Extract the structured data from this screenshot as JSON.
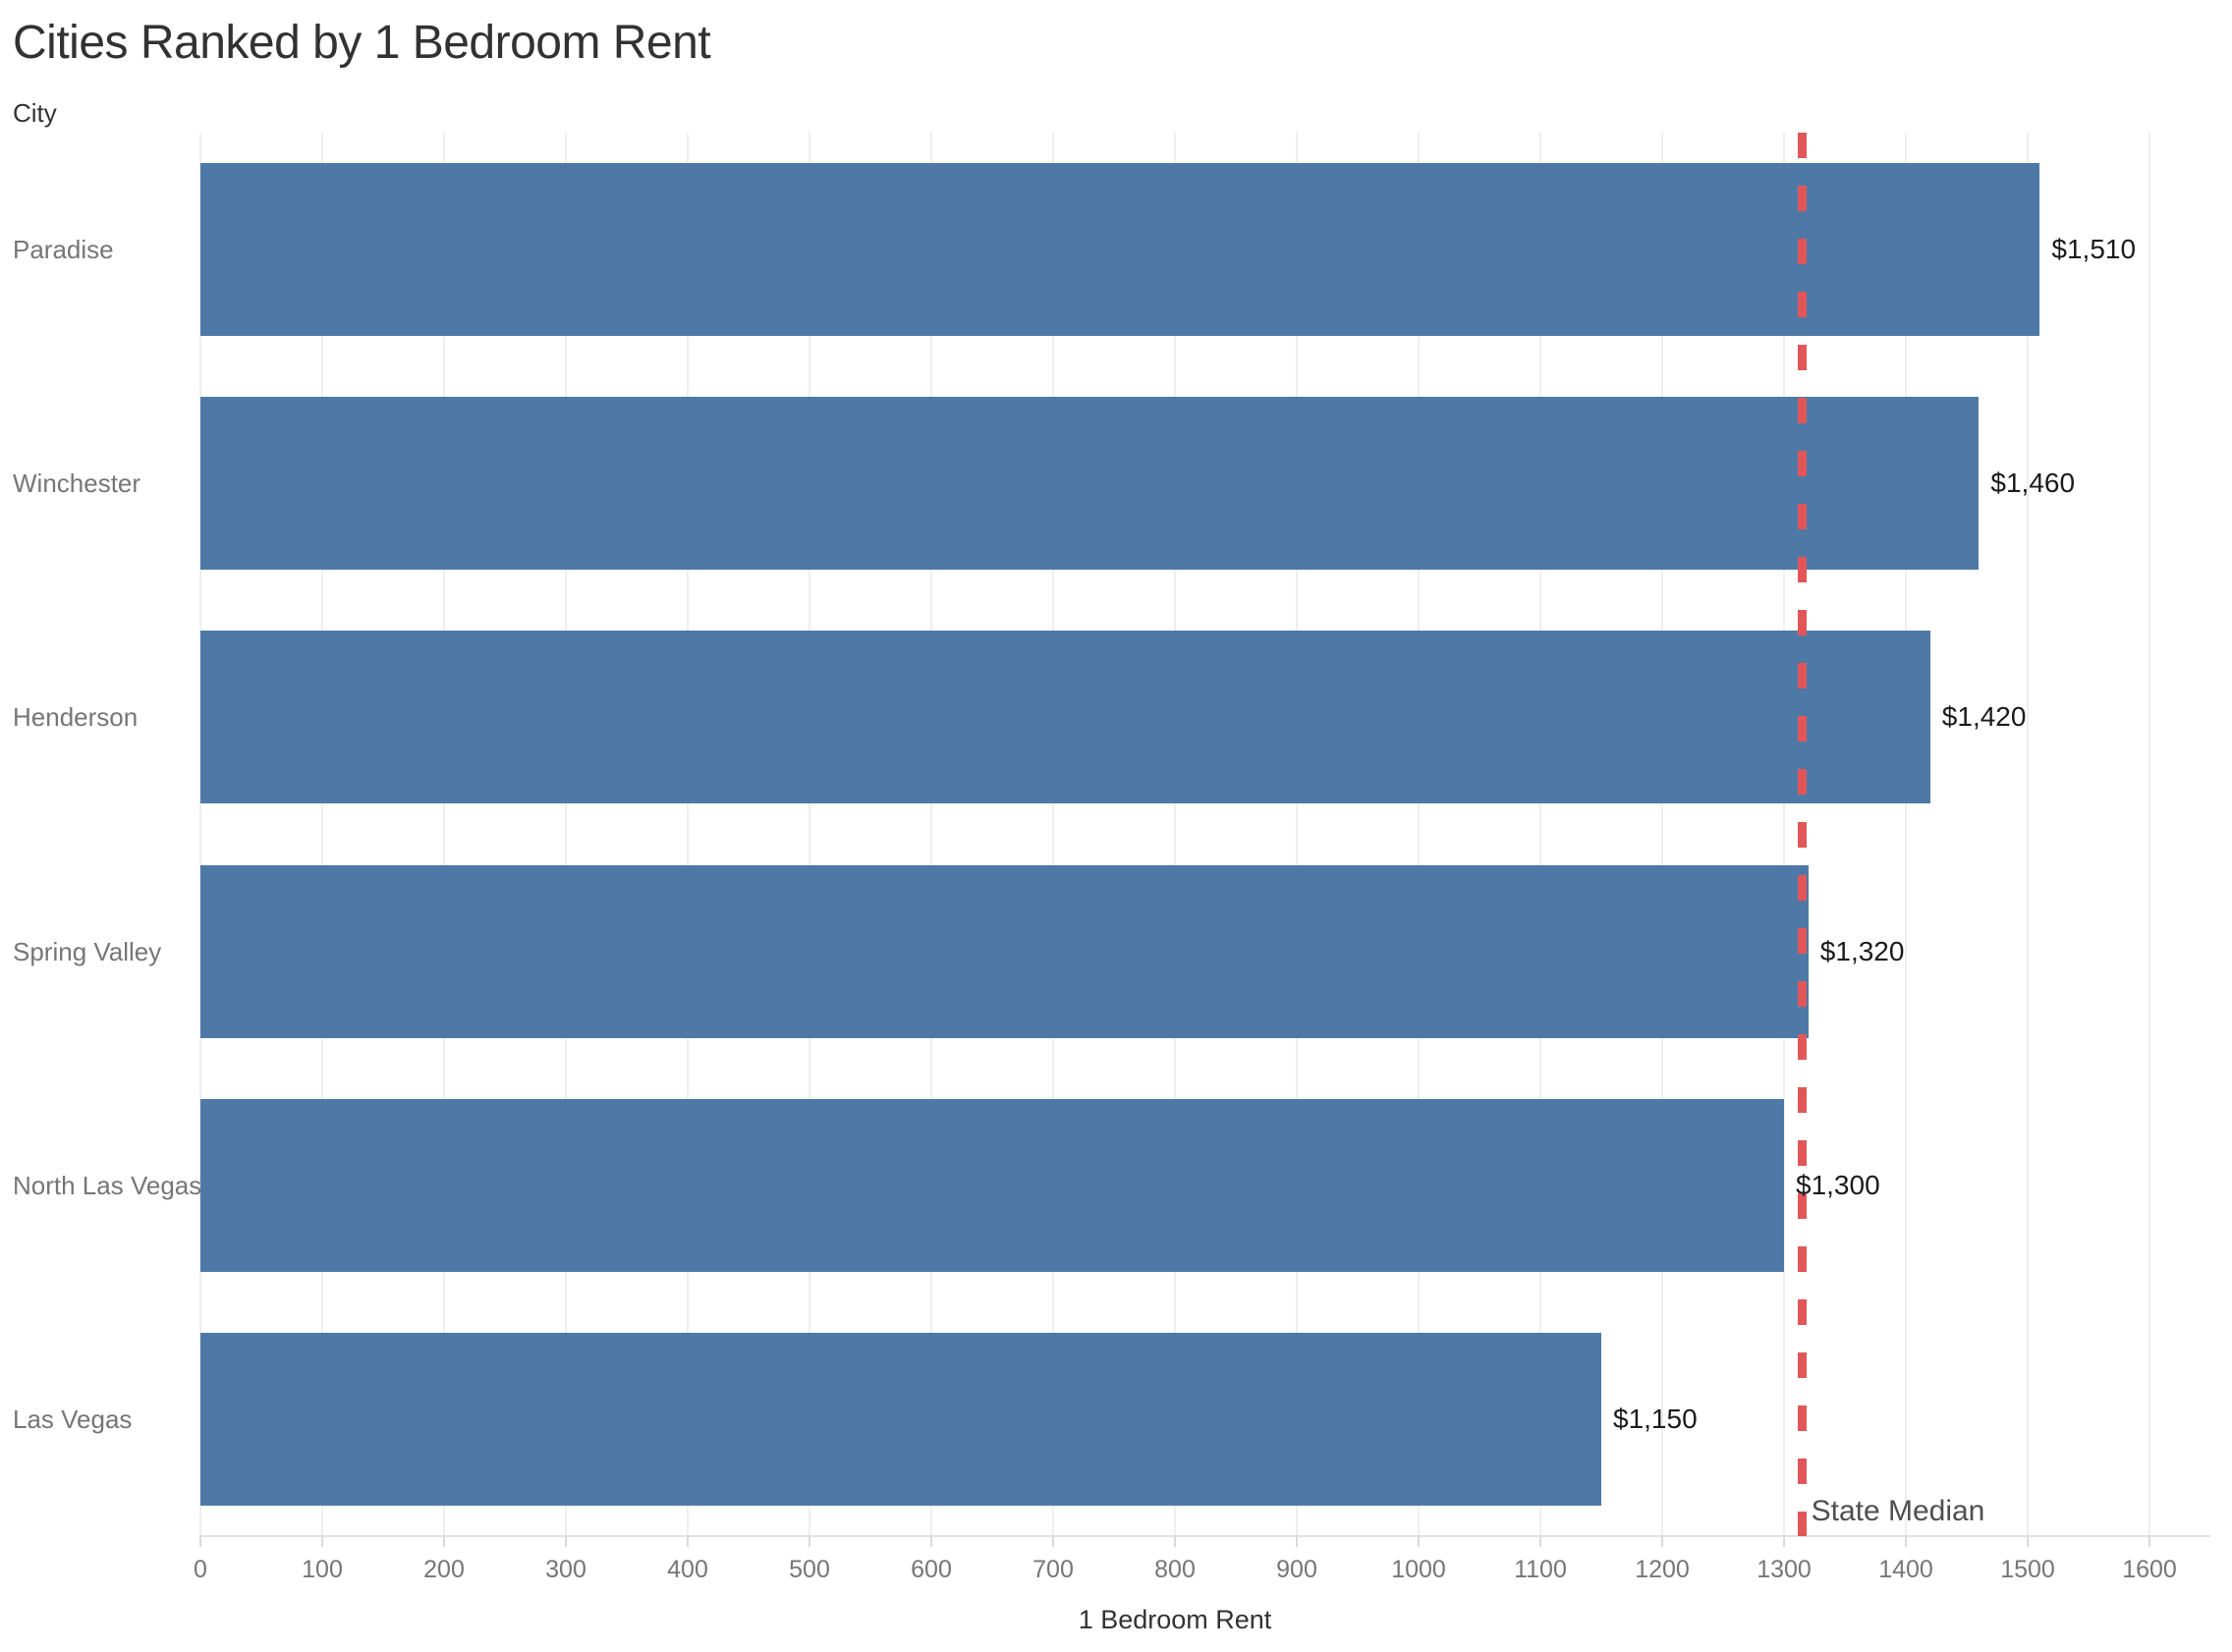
{
  "chart_data": {
    "type": "bar",
    "orientation": "horizontal",
    "title": "Cities Ranked by 1 Bedroom Rent",
    "ylabel": "City",
    "xlabel": "1 Bedroom Rent",
    "categories": [
      "Paradise",
      "Winchester",
      "Henderson",
      "Spring Valley",
      "North Las Vegas",
      "Las Vegas"
    ],
    "values": [
      1510,
      1460,
      1420,
      1320,
      1300,
      1150
    ],
    "value_labels": [
      "$1,510",
      "$1,460",
      "$1,420",
      "$1,320",
      "$1,300",
      "$1,150"
    ],
    "xlim": [
      0,
      1600
    ],
    "xticks": [
      0,
      100,
      200,
      300,
      400,
      500,
      600,
      700,
      800,
      900,
      1000,
      1100,
      1200,
      1300,
      1400,
      1500,
      1600
    ],
    "xtick_labels": [
      "0",
      "100",
      "200",
      "300",
      "400",
      "500",
      "600",
      "700",
      "800",
      "900",
      "1000",
      "1100",
      "1200",
      "1300",
      "1400",
      "1500",
      "1600"
    ],
    "grid": true,
    "legend": "none",
    "reference_line": {
      "label": "State Median",
      "value": 1315,
      "style": "dashed"
    },
    "colors": {
      "bar": "#4e79a7",
      "reference_line": "#e15759",
      "title_text": "#323232",
      "category_text": "#767676",
      "tick_text": "#767676",
      "value_text": "#1b1b1b",
      "reference_label_text": "#4f4f4f",
      "gridline": "#eeeeee",
      "axis_line": "#e1e1e1"
    }
  }
}
